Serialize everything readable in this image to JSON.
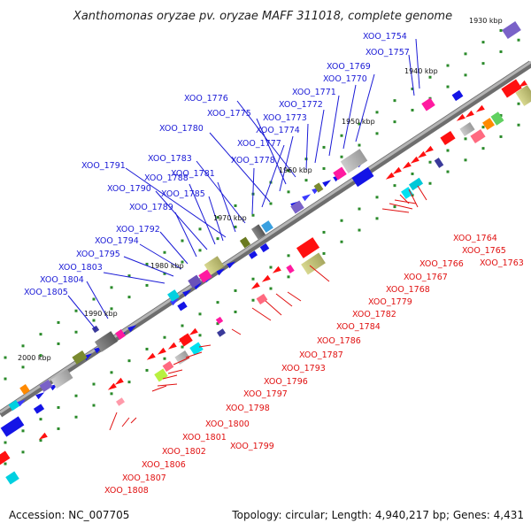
{
  "title": "Xanthomonas oryzae pv. oryzae MAFF 311018, complete genome",
  "accession": "Accession: NC_007705",
  "summary": "Topology: circular; Length: 4,940,217 bp; Genes: 4,431",
  "colors": {
    "forward_label": "#1a1ad6",
    "reverse_label": "#e01010",
    "backbone": "#8a8a8a",
    "tick_dot": "#2a8a2a"
  },
  "ticks": [
    "1930 kbp",
    "1940 kbp",
    "1950 kbp",
    "1960 kbp",
    "1970 kbp",
    "1980 kbp",
    "1990 kbp",
    "2000 kbp"
  ],
  "forward_genes": [
    "XOO_1754",
    "XOO_1757",
    "XOO_1769",
    "XOO_1770",
    "XOO_1771",
    "XOO_1772",
    "XOO_1773",
    "XOO_1776",
    "XOO_1775",
    "XOO_1774",
    "XOO_1780",
    "XOO_1777",
    "XOO_1778",
    "XOO_1783",
    "XOO_1791",
    "XOO_1788",
    "XOO_1781",
    "XOO_1790",
    "XOO_1785",
    "XOO_1789",
    "XOO_1792",
    "XOO_1794",
    "XOO_1795",
    "XOO_1803",
    "XOO_1804",
    "XOO_1805"
  ],
  "reverse_genes": [
    "XOO_1764",
    "XOO_1765",
    "XOO_1763",
    "XOO_1766",
    "XOO_1767",
    "XOO_1768",
    "XOO_1779",
    "XOO_1782",
    "XOO_1784",
    "XOO_1786",
    "XOO_1787",
    "XOO_1793",
    "XOO_1796",
    "XOO_1797",
    "XOO_1798",
    "XOO_1800",
    "XOO_1801",
    "XOO_1799",
    "XOO_1802",
    "XOO_1806",
    "XOO_1807",
    "XOO_1808"
  ]
}
